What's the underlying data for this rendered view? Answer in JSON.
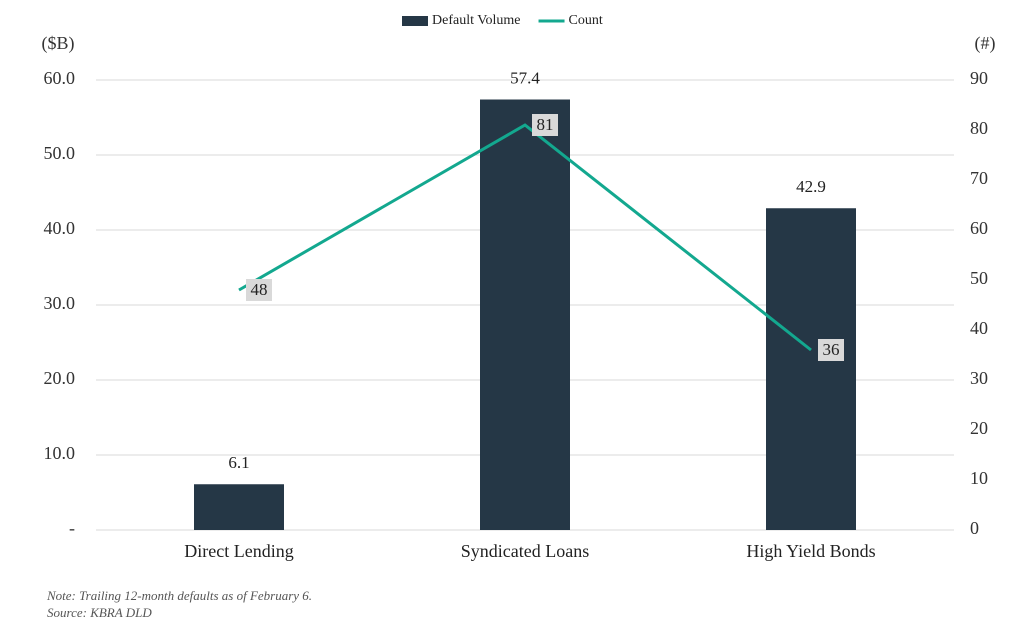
{
  "chart_data": {
    "type": "bar",
    "categories": [
      "Direct Lending",
      "Syndicated Loans",
      "High Yield Bonds"
    ],
    "series": [
      {
        "name": "Default Volume",
        "type": "bar",
        "color": "#253746",
        "values": [
          6.1,
          57.4,
          42.9
        ]
      },
      {
        "name": "Count",
        "type": "line",
        "axis": "y2",
        "color": "#13a88f",
        "values": [
          48,
          81,
          36
        ]
      }
    ],
    "ylabel": "($B)",
    "y2label": "(#)",
    "ylim": [
      0,
      60
    ],
    "yticks": [
      {
        "value": 0,
        "label": "-"
      },
      {
        "value": 10,
        "label": "10.0"
      },
      {
        "value": 20,
        "label": "20.0"
      },
      {
        "value": 30,
        "label": "30.0"
      },
      {
        "value": 40,
        "label": "40.0"
      },
      {
        "value": 50,
        "label": "50.0"
      },
      {
        "value": 60,
        "label": "60.0"
      }
    ],
    "y2lim": [
      0,
      90
    ],
    "y2ticks": [
      0,
      10,
      20,
      30,
      40,
      50,
      60,
      70,
      80,
      90
    ],
    "grid": true,
    "legend": "top",
    "notes": [
      "Note: Trailing 12-month defaults as of February 6.",
      "Source: KBRA DLD"
    ]
  }
}
